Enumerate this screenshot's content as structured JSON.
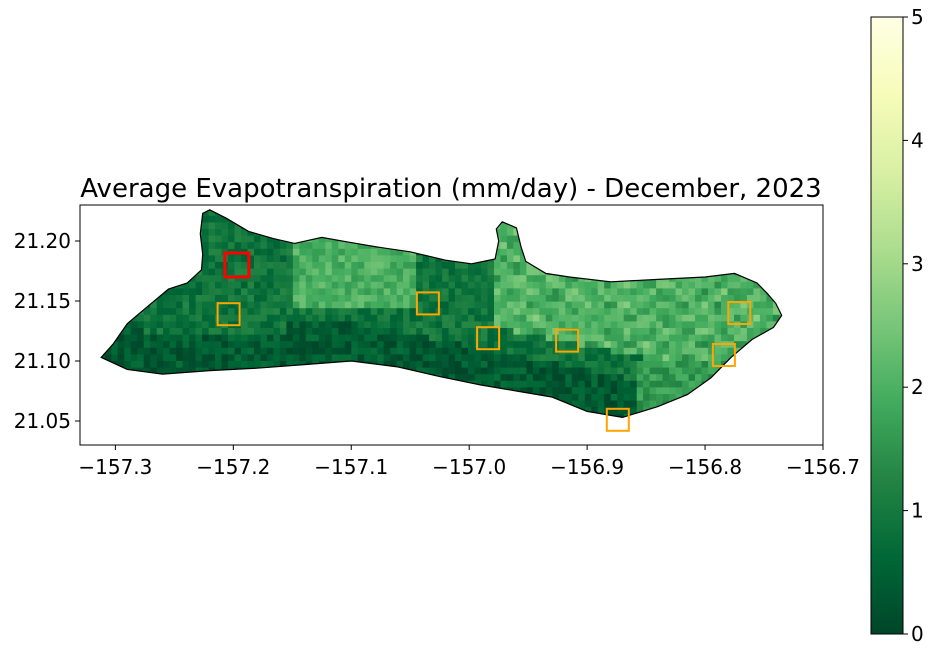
{
  "chart_data": {
    "type": "heatmap",
    "title": "Average Evapotranspiration (mm/day) - December, 2023",
    "xlabel": "",
    "ylabel": "",
    "xlim": [
      -157.33,
      -156.7
    ],
    "ylim": [
      21.03,
      21.23
    ],
    "x_ticks": [
      -157.3,
      -157.2,
      -157.1,
      -157.0,
      -156.9,
      -156.8,
      -156.7
    ],
    "x_tick_labels": [
      "−157.3",
      "−157.2",
      "−157.1",
      "−157.0",
      "−156.9",
      "−156.8",
      "−156.7"
    ],
    "y_ticks": [
      21.05,
      21.1,
      21.15,
      21.2
    ],
    "y_tick_labels": [
      "21.05",
      "21.10",
      "21.15",
      "21.20"
    ],
    "colormap": "YlGn_r",
    "colorbar": {
      "range": [
        0,
        5
      ],
      "ticks": [
        0,
        1,
        2,
        3,
        4,
        5
      ],
      "tick_labels": [
        "0",
        "1",
        "2",
        "3",
        "4",
        "5"
      ],
      "stops": [
        "#004529",
        "#006837",
        "#238443",
        "#41ab5d",
        "#78c679",
        "#addd8e",
        "#d9f0a3",
        "#f7fcb9",
        "#ffffe5"
      ]
    },
    "grid": false,
    "coastline_color": "#000000",
    "highlight_boxes": [
      {
        "center": [
          -157.197,
          21.18
        ],
        "color": "#ff0000"
      },
      {
        "center": [
          -157.204,
          21.139
        ],
        "color": "#ffa500"
      },
      {
        "center": [
          -157.035,
          21.148
        ],
        "color": "#ffa500"
      },
      {
        "center": [
          -156.984,
          21.119
        ],
        "color": "#ffa500"
      },
      {
        "center": [
          -156.917,
          21.117
        ],
        "color": "#ffa500"
      },
      {
        "center": [
          -156.874,
          21.051
        ],
        "color": "#ffa500"
      },
      {
        "center": [
          -156.784,
          21.105
        ],
        "color": "#ffa500"
      },
      {
        "center": [
          -156.771,
          21.14
        ],
        "color": "#ffa500"
      }
    ],
    "coastline": [
      [
        -157.312,
        21.103
      ],
      [
        -157.302,
        21.114
      ],
      [
        -157.29,
        21.131
      ],
      [
        -157.272,
        21.146
      ],
      [
        -157.255,
        21.16
      ],
      [
        -157.239,
        21.165
      ],
      [
        -157.227,
        21.176
      ],
      [
        -157.226,
        21.189
      ],
      [
        -157.228,
        21.206
      ],
      [
        -157.226,
        21.223
      ],
      [
        -157.22,
        21.226
      ],
      [
        -157.206,
        21.219
      ],
      [
        -157.187,
        21.208
      ],
      [
        -157.166,
        21.202
      ],
      [
        -157.148,
        21.198
      ],
      [
        -157.125,
        21.203
      ],
      [
        -157.102,
        21.199
      ],
      [
        -157.078,
        21.195
      ],
      [
        -157.05,
        21.191
      ],
      [
        -157.02,
        21.184
      ],
      [
        -156.998,
        21.181
      ],
      [
        -156.978,
        21.185
      ],
      [
        -156.975,
        21.2
      ],
      [
        -156.977,
        21.21
      ],
      [
        -156.972,
        21.216
      ],
      [
        -156.96,
        21.211
      ],
      [
        -156.956,
        21.195
      ],
      [
        -156.952,
        21.183
      ],
      [
        -156.935,
        21.173
      ],
      [
        -156.915,
        21.17
      ],
      [
        -156.88,
        21.166
      ],
      [
        -156.84,
        21.168
      ],
      [
        -156.8,
        21.17
      ],
      [
        -156.775,
        21.173
      ],
      [
        -156.756,
        21.165
      ],
      [
        -156.747,
        21.156
      ],
      [
        -156.74,
        21.148
      ],
      [
        -156.735,
        21.138
      ],
      [
        -156.742,
        21.128
      ],
      [
        -156.76,
        21.118
      ],
      [
        -156.778,
        21.103
      ],
      [
        -156.795,
        21.086
      ],
      [
        -156.815,
        21.072
      ],
      [
        -156.84,
        21.062
      ],
      [
        -156.87,
        21.053
      ],
      [
        -156.9,
        21.058
      ],
      [
        -156.93,
        21.07
      ],
      [
        -156.96,
        21.075
      ],
      [
        -156.99,
        21.08
      ],
      [
        -157.025,
        21.087
      ],
      [
        -157.06,
        21.095
      ],
      [
        -157.1,
        21.1
      ],
      [
        -157.14,
        21.097
      ],
      [
        -157.18,
        21.094
      ],
      [
        -157.22,
        21.092
      ],
      [
        -157.26,
        21.089
      ],
      [
        -157.29,
        21.093
      ],
      [
        -157.312,
        21.103
      ]
    ]
  }
}
